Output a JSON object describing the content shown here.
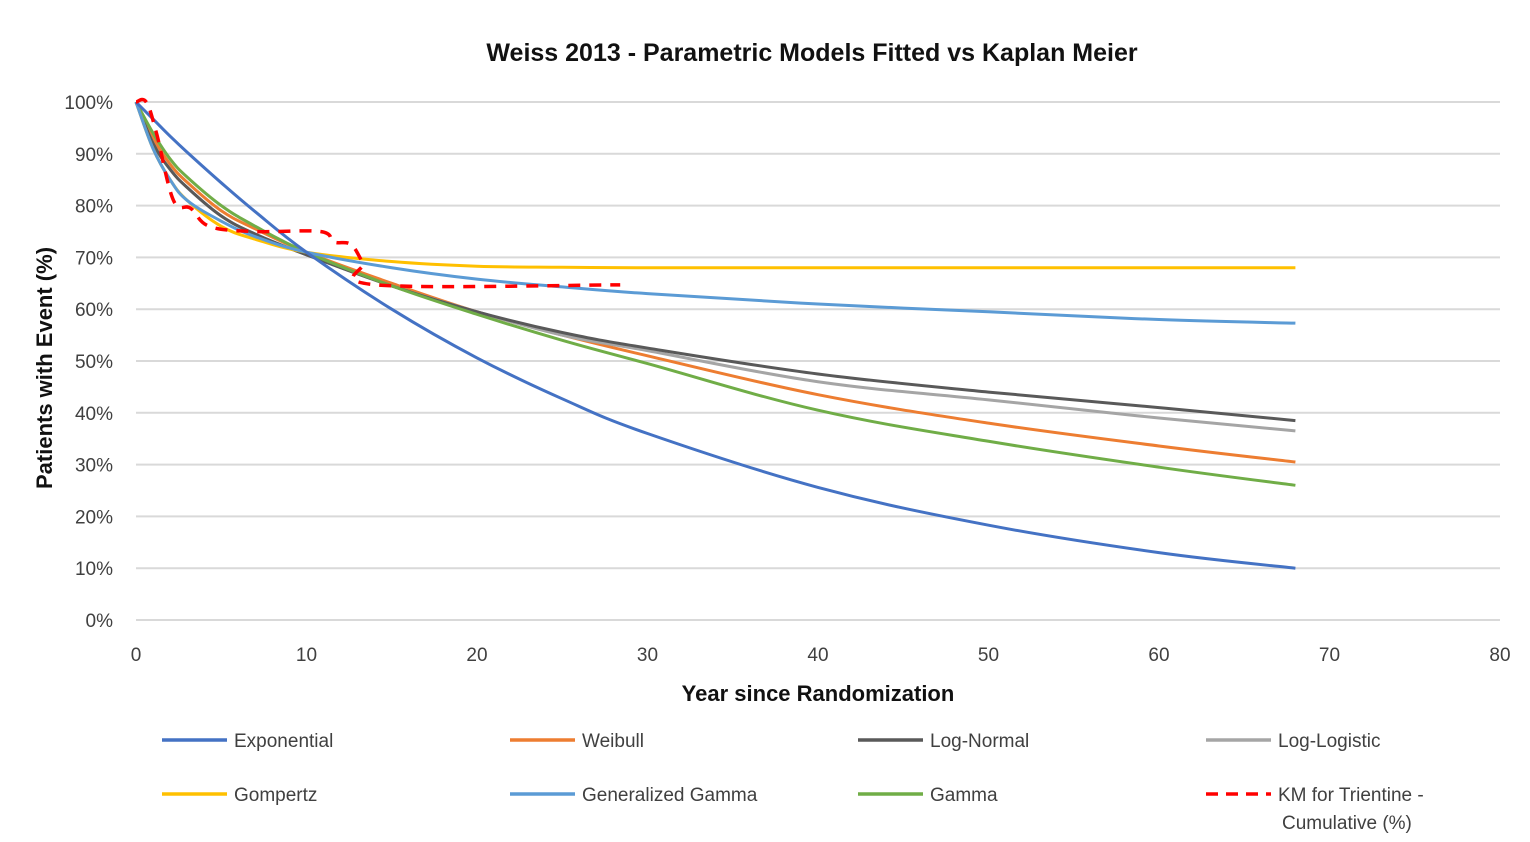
{
  "chart_data": {
    "type": "line",
    "title": "Weiss 2013 - Parametric Models Fitted vs Kaplan Meier",
    "xlabel": "Year since Randomization",
    "ylabel": "Patients with Event (%)",
    "xlim": [
      0,
      80
    ],
    "ylim": [
      0,
      100
    ],
    "x_ticks": [
      "0",
      "10",
      "20",
      "30",
      "40",
      "50",
      "60",
      "70",
      "80"
    ],
    "y_ticks": [
      "0%",
      "10%",
      "20%",
      "30%",
      "40%",
      "50%",
      "60%",
      "70%",
      "80%",
      "90%",
      "100%"
    ],
    "grid": "horizontal",
    "legend_position": "bottom",
    "x": [
      0,
      1,
      2,
      3,
      5,
      7,
      10,
      15,
      20,
      25,
      30,
      40,
      50,
      60,
      68
    ],
    "series": [
      {
        "name": "Exponential",
        "color": "#4472C4",
        "values": [
          100,
          96.7,
          93.4,
          90.3,
          84.4,
          78.8,
          71,
          60,
          50.6,
          42.7,
          36,
          25.6,
          18.3,
          13,
          10
        ]
      },
      {
        "name": "Weibull",
        "color": "#ED7D31",
        "values": [
          100,
          93,
          88,
          84.5,
          79,
          75.5,
          71,
          65,
          59.5,
          55,
          51,
          43.5,
          38,
          33.6,
          30.5
        ]
      },
      {
        "name": "Log-Normal",
        "color": "#595959",
        "values": [
          100,
          92,
          87,
          83.5,
          78,
          74.5,
          70.5,
          64.5,
          59.5,
          55.5,
          52.5,
          47.5,
          44,
          41,
          38.5
        ]
      },
      {
        "name": "Log-Logistic",
        "color": "#A5A5A5",
        "values": [
          100,
          92,
          87,
          83.5,
          78,
          74.5,
          70.5,
          64.5,
          59.5,
          55,
          52,
          46,
          42.5,
          39,
          36.5
        ]
      },
      {
        "name": "Gompertz",
        "color": "#FFC000",
        "values": [
          100,
          91,
          85,
          81,
          76,
          73.5,
          71,
          69.2,
          68.3,
          68.1,
          68,
          68,
          68,
          68,
          68
        ]
      },
      {
        "name": "Generalized Gamma",
        "color": "#5B9BD5",
        "values": [
          100,
          91,
          85,
          81,
          77,
          74,
          71,
          68,
          65.8,
          64.3,
          63,
          61,
          59.5,
          58,
          57.3
        ]
      },
      {
        "name": "Gamma",
        "color": "#70AD47",
        "values": [
          100,
          94,
          89,
          85.5,
          80,
          76,
          71,
          64.5,
          59,
          54,
          49.5,
          40.5,
          34.5,
          29.5,
          26
        ]
      }
    ],
    "km": {
      "name": "KM for Trientine - Cumulative (%)",
      "color": "#FF0000",
      "x": [
        0,
        0.6,
        1.2,
        2.2,
        3.2,
        4.3,
        6.9,
        10.8,
        11.6,
        12.6,
        13.3,
        14.1,
        28.4
      ],
      "values": [
        100,
        100,
        94,
        81,
        79.5,
        76,
        75,
        75,
        73,
        72.5,
        69,
        64.7,
        64.7
      ]
    }
  }
}
